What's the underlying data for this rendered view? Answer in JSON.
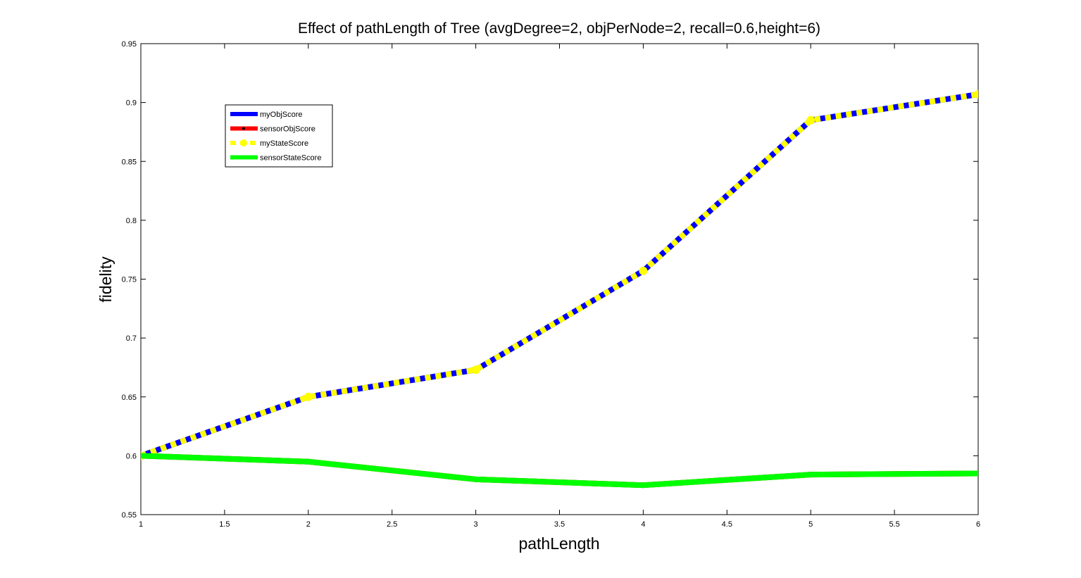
{
  "chart_data": {
    "type": "line",
    "title": "Effect of pathLength of Tree (avgDegree=2, objPerNode=2, recall=0.6,height=6)",
    "xlabel": "pathLength",
    "ylabel": "fidelity",
    "xlim": [
      1,
      6
    ],
    "ylim": [
      0.55,
      0.95
    ],
    "xticks": [
      1,
      1.5,
      2,
      2.5,
      3,
      3.5,
      4,
      4.5,
      5,
      5.5,
      6
    ],
    "xtick_labels": [
      "1",
      "1.5",
      "2",
      "2.5",
      "3",
      "3.5",
      "4",
      "4.5",
      "5",
      "5.5",
      "6"
    ],
    "yticks": [
      0.55,
      0.6,
      0.65,
      0.7,
      0.75,
      0.8,
      0.85,
      0.9,
      0.95
    ],
    "ytick_labels": [
      "0.55",
      "0.6",
      "0.65",
      "0.7",
      "0.75",
      "0.8",
      "0.85",
      "0.9",
      "0.95"
    ],
    "grid": false,
    "legend_position": "upper-left",
    "x": [
      1,
      2,
      3,
      4,
      5,
      6
    ],
    "series": [
      {
        "name": "myObjScore",
        "values": [
          0.6,
          0.65,
          0.673,
          0.757,
          0.885,
          0.907
        ],
        "color": "#0000ff",
        "style": "solid",
        "marker": "none"
      },
      {
        "name": "sensorObjScore",
        "values": [
          0.6,
          0.595,
          0.58,
          0.575,
          0.584,
          0.585
        ],
        "color": "#ff0000",
        "style": "solid",
        "marker": "point"
      },
      {
        "name": "myStateScore",
        "values": [
          0.6,
          0.65,
          0.673,
          0.757,
          0.885,
          0.907
        ],
        "color": "#ffff00",
        "style": "dashed",
        "marker": "circle"
      },
      {
        "name": "sensorStateScore",
        "values": [
          0.6,
          0.595,
          0.58,
          0.575,
          0.584,
          0.585
        ],
        "color": "#00ff00",
        "style": "solid",
        "marker": "none"
      }
    ]
  }
}
